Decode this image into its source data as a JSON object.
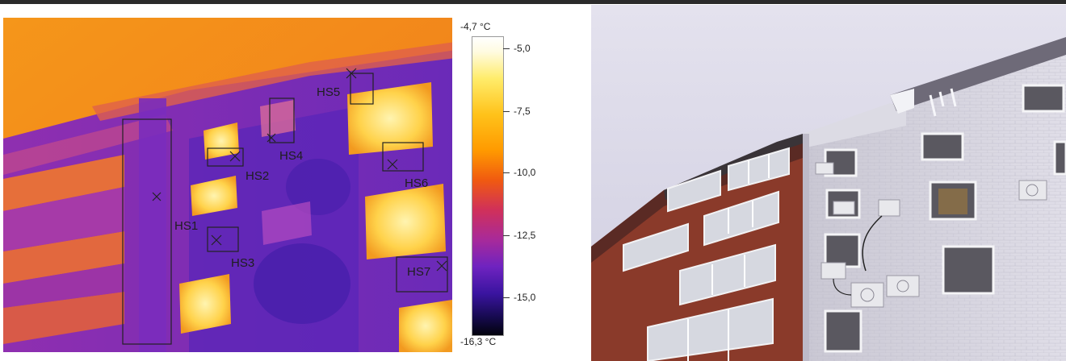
{
  "scale": {
    "max_label": "-4,7 °C",
    "min_label": "-16,3 °C",
    "ticks": [
      "-5,0",
      "-7,5",
      "-10,0",
      "-12,5",
      "-15,0"
    ]
  },
  "hotspots": [
    "HS1",
    "HS2",
    "HS3",
    "HS4",
    "HS5",
    "HS6",
    "HS7"
  ],
  "colors": {
    "thermal_warm": "#f59a1a",
    "thermal_cold": "#6a2bb0",
    "window_hot": "#ffe880",
    "brick": "#8a3a2a",
    "sky": "#d8d6e6"
  }
}
